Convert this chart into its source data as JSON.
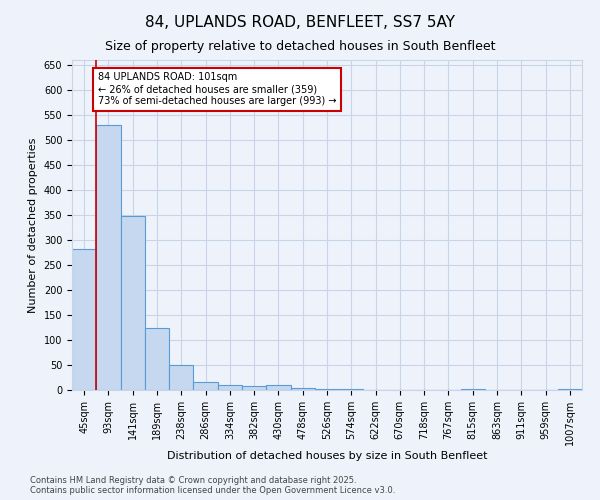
{
  "title": "84, UPLANDS ROAD, BENFLEET, SS7 5AY",
  "subtitle": "Size of property relative to detached houses in South Benfleet",
  "xlabel": "Distribution of detached houses by size in South Benfleet",
  "ylabel": "Number of detached properties",
  "bar_categories": [
    "45sqm",
    "93sqm",
    "141sqm",
    "189sqm",
    "238sqm",
    "286sqm",
    "334sqm",
    "382sqm",
    "430sqm",
    "478sqm",
    "526sqm",
    "574sqm",
    "622sqm",
    "670sqm",
    "718sqm",
    "767sqm",
    "815sqm",
    "863sqm",
    "911sqm",
    "959sqm",
    "1007sqm"
  ],
  "bar_values": [
    283,
    530,
    348,
    125,
    50,
    17,
    10,
    9,
    10,
    4,
    2,
    2,
    0,
    0,
    0,
    0,
    2,
    0,
    0,
    0,
    3
  ],
  "bar_color": "#c5d8f0",
  "bar_edgecolor": "#5b9bd5",
  "bar_linewidth": 0.8,
  "vline_x": 1,
  "vline_color": "#cc0000",
  "annotation_text": "84 UPLANDS ROAD: 101sqm\n← 26% of detached houses are smaller (359)\n73% of semi-detached houses are larger (993) →",
  "annotation_box_color": "#cc0000",
  "annotation_text_color": "black",
  "annotation_facecolor": "white",
  "ylim": [
    0,
    660
  ],
  "yticks": [
    0,
    50,
    100,
    150,
    200,
    250,
    300,
    350,
    400,
    450,
    500,
    550,
    600,
    650
  ],
  "background_color": "#eef2fb",
  "grid_color": "#c8d4e8",
  "title_fontsize": 11,
  "subtitle_fontsize": 9,
  "tick_fontsize": 7,
  "ylabel_fontsize": 8,
  "xlabel_fontsize": 8,
  "footer_text": "Contains HM Land Registry data © Crown copyright and database right 2025.\nContains public sector information licensed under the Open Government Licence v3.0."
}
